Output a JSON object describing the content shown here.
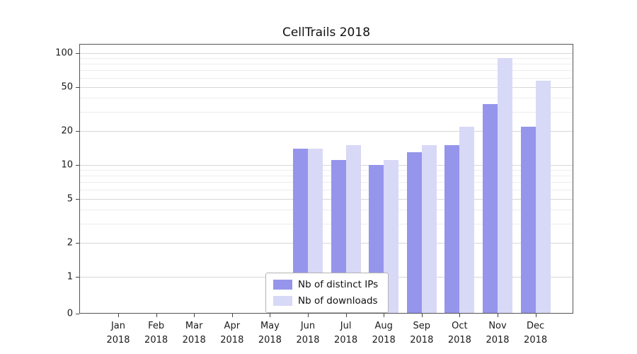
{
  "title": "CellTrails 2018",
  "legend": {
    "items": [
      {
        "label": "Nb of distinct IPs",
        "color": "#9595ec"
      },
      {
        "label": "Nb of downloads",
        "color": "#d8d8f7"
      }
    ]
  },
  "chart_data": {
    "type": "bar",
    "title": "CellTrails 2018",
    "categories": [
      "Jan",
      "Feb",
      "Mar",
      "Apr",
      "May",
      "Jun",
      "Jul",
      "Aug",
      "Sep",
      "Oct",
      "Nov",
      "Dec"
    ],
    "year_label": "2018",
    "series": [
      {
        "name": "Nb of distinct IPs",
        "color": "#9595ec",
        "values": [
          0,
          0,
          0,
          0,
          0,
          14,
          11,
          10,
          13,
          15,
          35,
          22
        ]
      },
      {
        "name": "Nb of downloads",
        "color": "#d8d8f7",
        "values": [
          0,
          0,
          0,
          0,
          0,
          14,
          15,
          11,
          15,
          22,
          90,
          57
        ]
      }
    ],
    "yscale": "symlog",
    "yticks": [
      0,
      1,
      2,
      5,
      10,
      20,
      50,
      100
    ],
    "yminor_gridlines": [
      3,
      4,
      6,
      7,
      8,
      9,
      30,
      40,
      60,
      70,
      80,
      90
    ],
    "ylim": [
      0,
      110
    ],
    "grid": true,
    "legend_position": "bottom-center-inside"
  }
}
